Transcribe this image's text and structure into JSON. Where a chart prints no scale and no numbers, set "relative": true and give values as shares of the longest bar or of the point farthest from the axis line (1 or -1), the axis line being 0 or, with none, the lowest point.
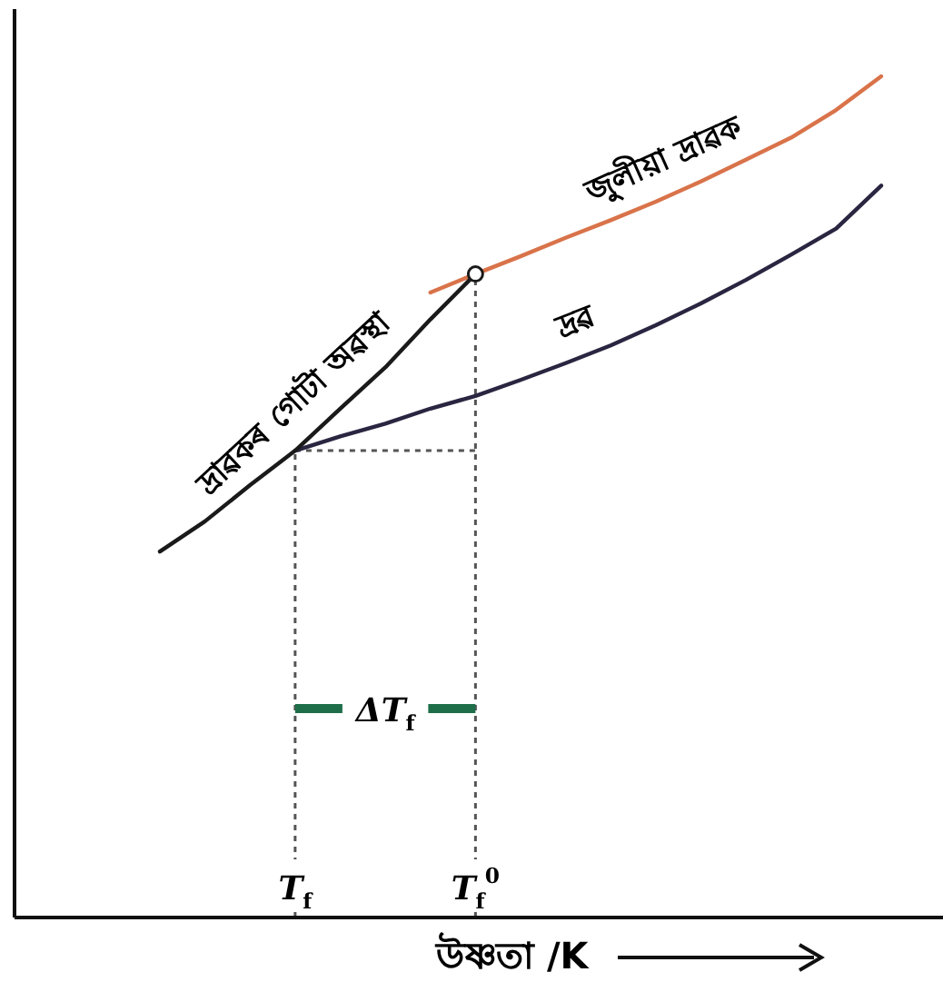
{
  "chart_data": {
    "type": "line",
    "relative": true,
    "xlabel": "উষ্ণতা /K",
    "grid": "x",
    "line_style": "solid",
    "categories": [
      null,
      null,
      null,
      "T$_{f}$",
      null,
      null,
      null,
      "T$_{f}$$^{0}$",
      null,
      null,
      null,
      null,
      null,
      null,
      null,
      null,
      null
    ],
    "series": [
      {
        "name": "জুলীয়া দ্ৰাৱক",
        "color": "#d9734a",
        "values": [
          null,
          null,
          null,
          null,
          null,
          null,
          0.743,
          0.765,
          0.786,
          0.808,
          0.829,
          0.851,
          0.875,
          0.901,
          0.927,
          0.96,
          1
        ]
      },
      {
        "name": "দ্ৰৱ",
        "color": "#2a2540",
        "values": [
          null,
          null,
          null,
          0.555,
          0.572,
          0.587,
          0.605,
          0.62,
          0.639,
          0.659,
          0.68,
          0.704,
          0.73,
          0.758,
          0.788,
          0.819,
          0.87
        ]
      },
      {
        "name": "দ্ৰাৱকৰ গোটা অৱস্থা",
        "color": "#1a1a1a",
        "values": [
          0.435,
          0.471,
          0.514,
          0.555,
          0.605,
          0.654,
          0.711,
          0.765,
          null,
          null,
          null,
          null,
          null,
          null,
          null,
          null,
          null
        ]
      }
    ],
    "ref_lines": [
      {
        "axis": "y",
        "value": 0.555,
        "line_style": "dotted",
        "color": "#555555"
      }
    ],
    "annotations": [
      "ΔT$_{f}$"
    ]
  }
}
